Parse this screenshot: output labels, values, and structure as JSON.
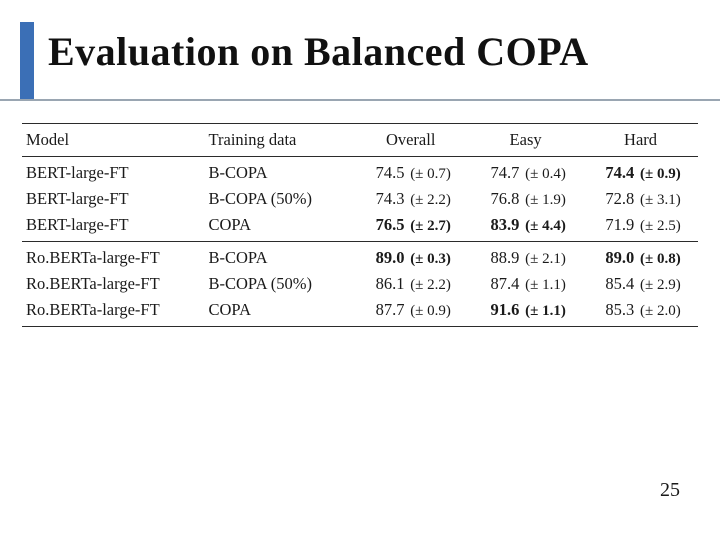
{
  "colors": {
    "accent": "#3b6fb6",
    "title": "#111111",
    "underline": "#9aa6b2",
    "rule": "#2b2b2b",
    "text": "#1a1a1a"
  },
  "title": "Evaluation on Balanced COPA",
  "page_number": "25",
  "table": {
    "columns": [
      "Model",
      "Training data",
      "Overall",
      "Easy",
      "Hard"
    ],
    "groups": [
      {
        "rows": [
          {
            "model": "BERT-large-FT",
            "train": "B-COPA",
            "overall": {
              "v": "74.5",
              "pm": "0.7",
              "bold": false
            },
            "easy": {
              "v": "74.7",
              "pm": "0.4",
              "bold": false
            },
            "hard": {
              "v": "74.4",
              "pm": "0.9",
              "bold": true
            }
          },
          {
            "model": "BERT-large-FT",
            "train": "B-COPA (50%)",
            "overall": {
              "v": "74.3",
              "pm": "2.2",
              "bold": false
            },
            "easy": {
              "v": "76.8",
              "pm": "1.9",
              "bold": false
            },
            "hard": {
              "v": "72.8",
              "pm": "3.1",
              "bold": false
            }
          },
          {
            "model": "BERT-large-FT",
            "train": "COPA",
            "overall": {
              "v": "76.5",
              "pm": "2.7",
              "bold": true
            },
            "easy": {
              "v": "83.9",
              "pm": "4.4",
              "bold": true
            },
            "hard": {
              "v": "71.9",
              "pm": "2.5",
              "bold": false
            }
          }
        ]
      },
      {
        "rows": [
          {
            "model": "Ro.BERTa-large-FT",
            "train": "B-COPA",
            "overall": {
              "v": "89.0",
              "pm": "0.3",
              "bold": true
            },
            "easy": {
              "v": "88.9",
              "pm": "2.1",
              "bold": false
            },
            "hard": {
              "v": "89.0",
              "pm": "0.8",
              "bold": true
            }
          },
          {
            "model": "Ro.BERTa-large-FT",
            "train": "B-COPA (50%)",
            "overall": {
              "v": "86.1",
              "pm": "2.2",
              "bold": false
            },
            "easy": {
              "v": "87.4",
              "pm": "1.1",
              "bold": false
            },
            "hard": {
              "v": "85.4",
              "pm": "2.9",
              "bold": false
            }
          },
          {
            "model": "Ro.BERTa-large-FT",
            "train": "COPA",
            "overall": {
              "v": "87.7",
              "pm": "0.9",
              "bold": false
            },
            "easy": {
              "v": "91.6",
              "pm": "1.1",
              "bold": true
            },
            "hard": {
              "v": "85.3",
              "pm": "2.0",
              "bold": false
            }
          }
        ]
      }
    ]
  }
}
